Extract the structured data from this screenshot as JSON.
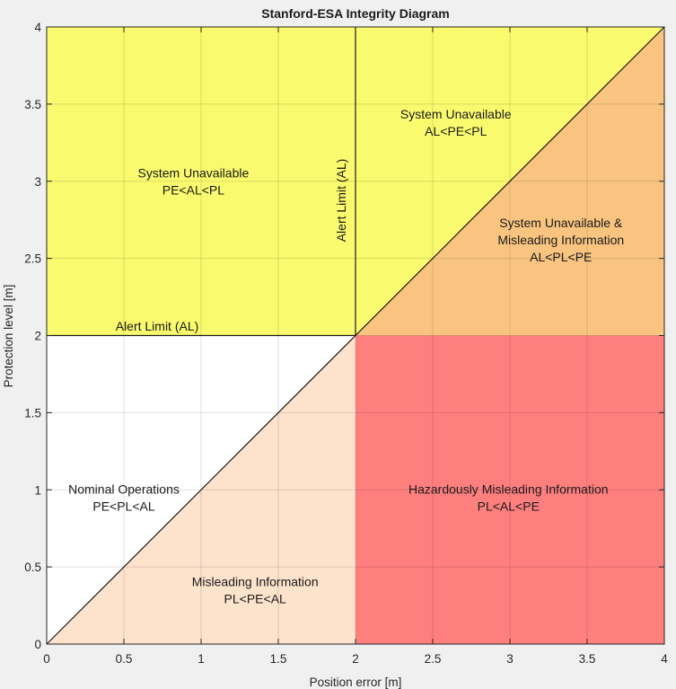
{
  "chart_data": {
    "type": "area",
    "title": "Stanford-ESA Integrity Diagram",
    "xlabel": "Position error [m]",
    "ylabel": "Protection level [m]",
    "xlim": [
      0,
      4
    ],
    "ylim": [
      0,
      4
    ],
    "grid": true,
    "x_ticks": [
      0,
      0.5,
      1,
      1.5,
      2,
      2.5,
      3,
      3.5,
      4
    ],
    "y_ticks": [
      0,
      0.5,
      1,
      1.5,
      2,
      2.5,
      3,
      3.5,
      4
    ],
    "x_tick_labels": [
      "0",
      "0.5",
      "1",
      "1.5",
      "2",
      "2.5",
      "3",
      "3.5",
      "4"
    ],
    "y_tick_labels": [
      "0",
      "0.5",
      "1",
      "1.5",
      "2",
      "2.5",
      "3",
      "3.5",
      "4"
    ],
    "alert_limit": 2,
    "reference_lines": [
      {
        "name": "alert-limit-horizontal",
        "label": "Alert Limit (AL)",
        "orientation": "horizontal",
        "value": 2
      },
      {
        "name": "alert-limit-vertical",
        "label": "Alert Limit (AL)",
        "orientation": "vertical",
        "value": 2
      },
      {
        "name": "diagonal",
        "label": "",
        "orientation": "diagonal",
        "from": [
          0,
          0
        ],
        "to": [
          4,
          4
        ]
      }
    ],
    "regions": [
      {
        "name": "nominal-operations",
        "color": "#ffffff",
        "polygon": [
          [
            0,
            0
          ],
          [
            2,
            2
          ],
          [
            0,
            2
          ]
        ],
        "label_lines": [
          "Nominal Operations",
          "PE<PL<AL"
        ],
        "label_anchor": [
          0.5,
          0.95
        ]
      },
      {
        "name": "misleading-information",
        "color": "#fde2cc",
        "polygon": [
          [
            0,
            0
          ],
          [
            2,
            0
          ],
          [
            2,
            2
          ]
        ],
        "label_lines": [
          "Misleading Information",
          "PL<PE<AL"
        ],
        "label_anchor": [
          1.35,
          0.35
        ]
      },
      {
        "name": "system-unavailable-pe-al-pl",
        "color": "#fafa6e",
        "polygon": [
          [
            0,
            2
          ],
          [
            2,
            2
          ],
          [
            2,
            4
          ],
          [
            0,
            4
          ]
        ],
        "label_lines": [
          "System Unavailable",
          "PE<AL<PL"
        ],
        "label_anchor": [
          0.95,
          3.0
        ]
      },
      {
        "name": "system-unavailable-al-pe-pl",
        "color": "#fafa6e",
        "polygon": [
          [
            2,
            2
          ],
          [
            4,
            4
          ],
          [
            2,
            4
          ]
        ],
        "label_lines": [
          "System Unavailable",
          "AL<PE<PL"
        ],
        "label_anchor": [
          2.65,
          3.38
        ]
      },
      {
        "name": "system-unavailable-misleading",
        "color": "#f9c480",
        "polygon": [
          [
            2,
            2
          ],
          [
            4,
            2
          ],
          [
            4,
            4
          ]
        ],
        "label_lines": [
          "System Unavailable &",
          "Misleading Information",
          "AL<PL<PE"
        ],
        "label_anchor": [
          3.33,
          2.62
        ]
      },
      {
        "name": "hazardously-misleading",
        "color": "#ff7f7f",
        "polygon": [
          [
            2,
            0
          ],
          [
            4,
            0
          ],
          [
            4,
            2
          ],
          [
            2,
            2
          ]
        ],
        "label_lines": [
          "Hazardously Misleading Information",
          "PL<AL<PE"
        ],
        "label_anchor": [
          2.99,
          0.95
        ]
      }
    ]
  }
}
